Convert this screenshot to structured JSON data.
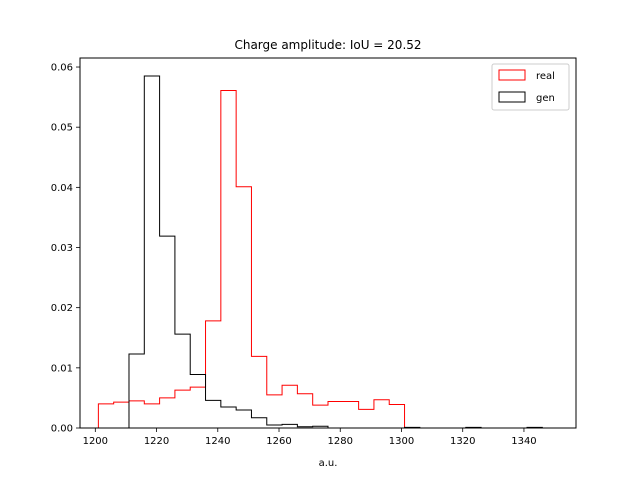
{
  "chart_data": {
    "type": "histogram-step",
    "title": "Charge amplitude: IoU = 20.52",
    "xlabel": "a.u.",
    "ylabel": "",
    "xlim": [
      1195,
      1357
    ],
    "ylim": [
      0,
      0.0615
    ],
    "xticks": [
      1200,
      1220,
      1240,
      1260,
      1280,
      1300,
      1320,
      1340
    ],
    "yticks": [
      0.0,
      0.01,
      0.02,
      0.03,
      0.04,
      0.05,
      0.06
    ],
    "ytick_labels": [
      "0.00",
      "0.01",
      "0.02",
      "0.03",
      "0.04",
      "0.05",
      "0.06"
    ],
    "legend_position": "upper right",
    "series": [
      {
        "name": "real",
        "color": "#ff0000",
        "edges": [
          1201,
          1203.5,
          1206,
          1208.5,
          1211,
          1213.5,
          1216,
          1218.5,
          1221,
          1223.5,
          1226,
          1228.5,
          1231,
          1233.5,
          1236,
          1238.5,
          1241,
          1243.5,
          1246,
          1248.5,
          1251,
          1253.5,
          1256,
          1258.5,
          1261,
          1263.5,
          1266,
          1268.5,
          1271,
          1273.5,
          1276,
          1278.5,
          1281,
          1283.5,
          1286,
          1288.5,
          1291,
          1293.5,
          1296,
          1298.5,
          1301
        ],
        "values": [
          0.004,
          0.004,
          0.0043,
          0.0043,
          0.0045,
          0.0045,
          0.004,
          0.004,
          0.005,
          0.005,
          0.0063,
          0.0063,
          0.0068,
          0.0068,
          0.0178,
          0.0178,
          0.0561,
          0.0561,
          0.0401,
          0.0401,
          0.0119,
          0.0119,
          0.0055,
          0.0055,
          0.0071,
          0.0071,
          0.0057,
          0.0057,
          0.0038,
          0.0038,
          0.0044,
          0.0044,
          0.0044,
          0.0044,
          0.0031,
          0.0031,
          0.0047,
          0.0047,
          0.0039,
          0.0039
        ]
      },
      {
        "name": "gen",
        "color": "#000000",
        "edges": [
          1211,
          1216,
          1221,
          1226,
          1231,
          1236,
          1241,
          1246,
          1251,
          1256,
          1261,
          1266,
          1271,
          1276,
          1281,
          1286,
          1291,
          1296,
          1301,
          1306,
          1311,
          1316,
          1321,
          1326,
          1331,
          1336,
          1341,
          1346,
          1351
        ],
        "values": [
          0.0123,
          0.0585,
          0.0319,
          0.0156,
          0.0089,
          0.0046,
          0.0035,
          0.003,
          0.0017,
          0.0005,
          0.0006,
          0.0002,
          0.0003,
          0.0,
          0.0,
          0.0,
          0.0,
          0.0,
          0.0001,
          0.0,
          0.0,
          0.0,
          0.0001,
          0.0,
          0.0,
          0.0,
          0.0001,
          0.0
        ]
      }
    ]
  }
}
